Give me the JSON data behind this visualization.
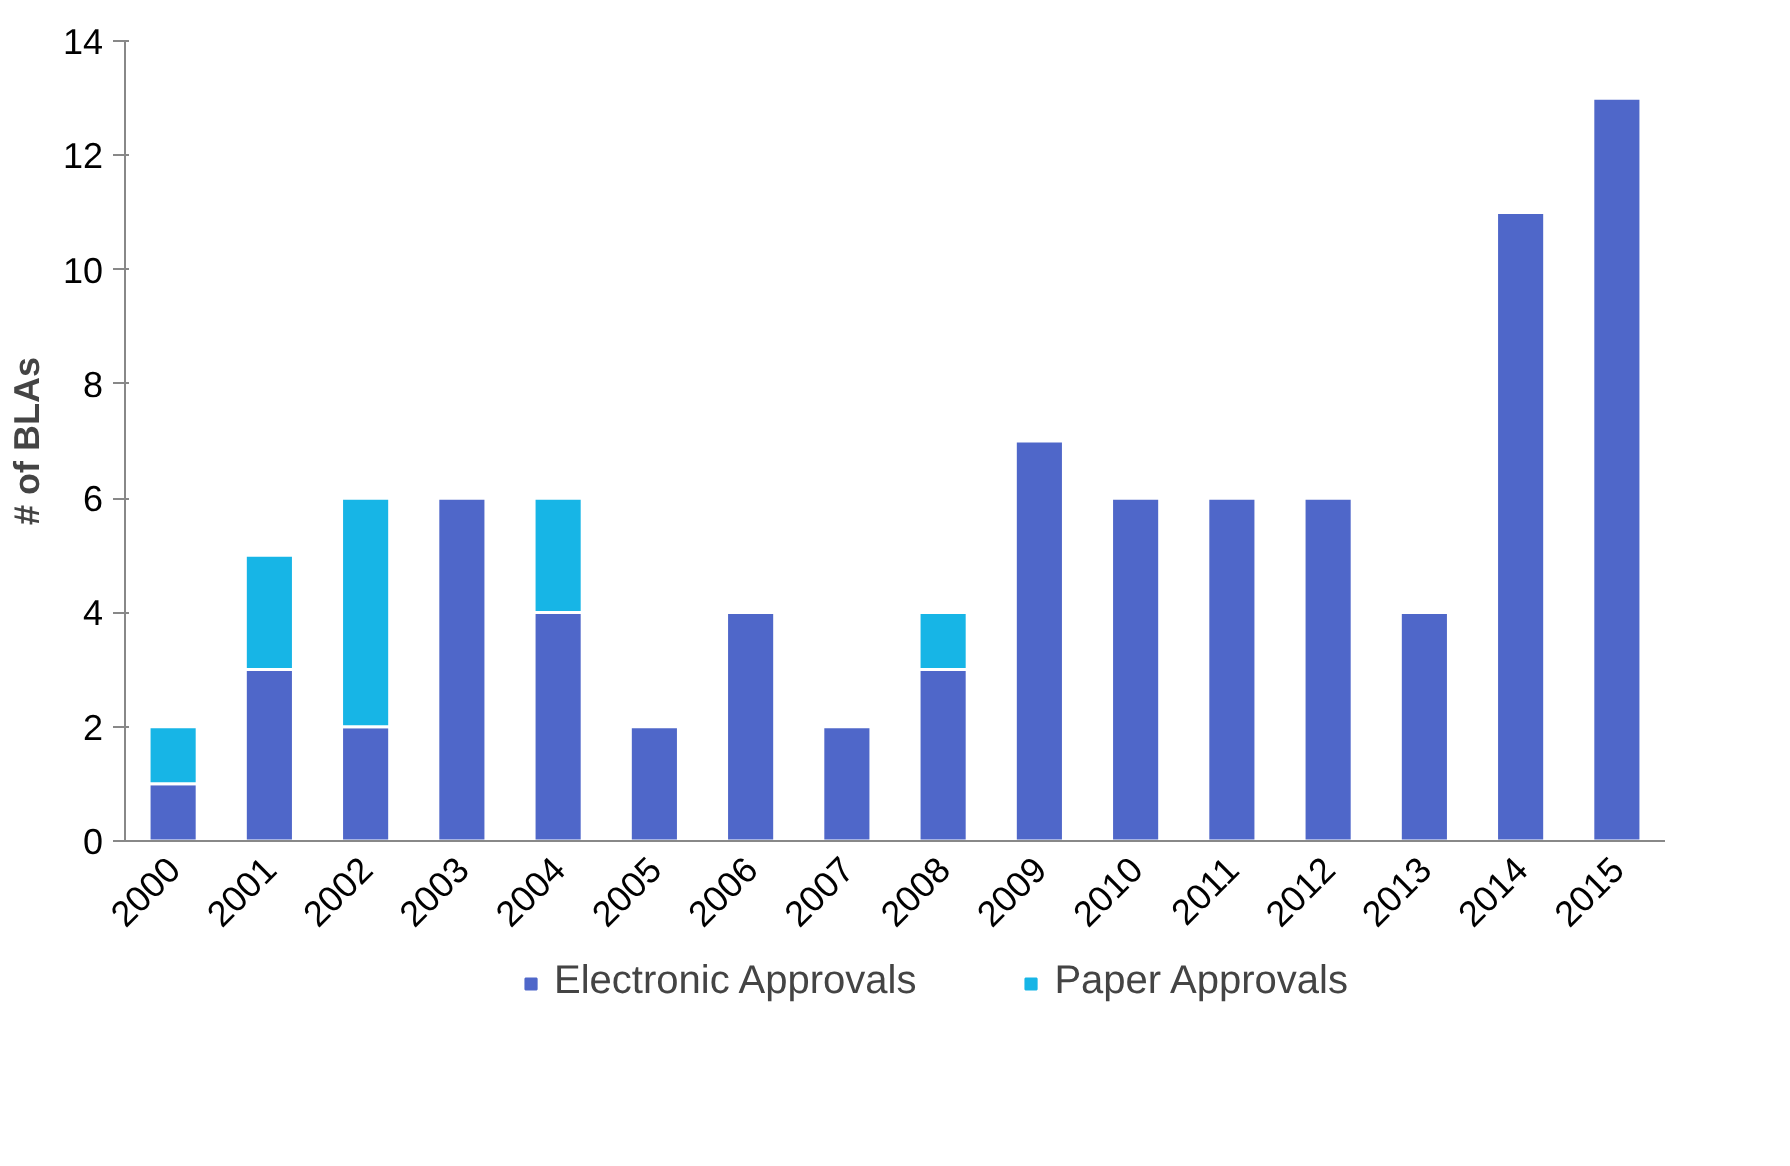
{
  "chart_data": {
    "type": "bar",
    "ylabel": "# of BLAs",
    "stacked": true,
    "legend": "bottom",
    "grid": false,
    "categories": [
      "2000",
      "2001",
      "2002",
      "2003",
      "2004",
      "2005",
      "2006",
      "2007",
      "2008",
      "2009",
      "2010",
      "2011",
      "2012",
      "2013",
      "2014",
      "2015"
    ],
    "series": [
      {
        "name": "Electronic Approvals",
        "color": "#4f67c9",
        "values": [
          1,
          3,
          2,
          6,
          4,
          2,
          4,
          2,
          3,
          7,
          6,
          6,
          6,
          4,
          11,
          13
        ]
      },
      {
        "name": "Paper Approvals",
        "color": "#17b5e6",
        "values": [
          1,
          2,
          4,
          null,
          2,
          null,
          null,
          null,
          1,
          null,
          null,
          null,
          null,
          null,
          null,
          null
        ]
      }
    ],
    "ylim": [
      0,
      14
    ],
    "yticks": [
      0,
      2,
      4,
      6,
      8,
      10,
      12,
      14
    ]
  }
}
